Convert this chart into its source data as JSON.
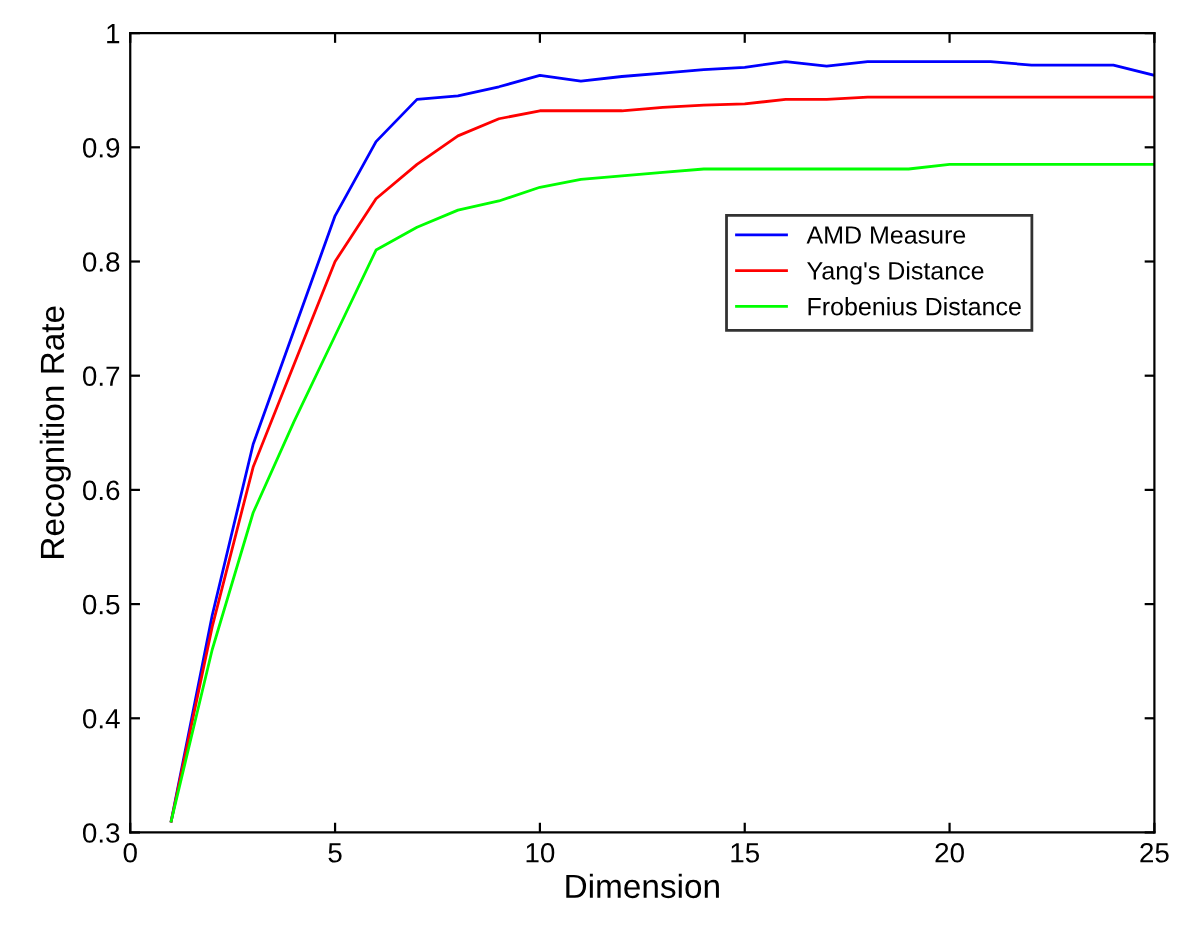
{
  "chart_data": {
    "type": "line",
    "xlabel": "Dimension",
    "ylabel": "Recognition Rate",
    "x": [
      1,
      2,
      3,
      4,
      5,
      6,
      7,
      8,
      9,
      10,
      11,
      12,
      13,
      14,
      15,
      16,
      17,
      18,
      19,
      20,
      21,
      22,
      23,
      24,
      25
    ],
    "series": [
      {
        "name": "AMD Measure",
        "color": "#0000ff",
        "values": [
          0.31,
          0.49,
          0.64,
          0.74,
          0.84,
          0.905,
          0.942,
          0.945,
          0.953,
          0.963,
          0.958,
          0.962,
          0.965,
          0.968,
          0.97,
          0.975,
          0.971,
          0.975,
          0.975,
          0.975,
          0.975,
          0.972,
          0.972,
          0.972,
          0.963
        ]
      },
      {
        "name": "Yang's Distance",
        "color": "#ff0000",
        "values": [
          0.31,
          0.48,
          0.62,
          0.71,
          0.8,
          0.855,
          0.885,
          0.91,
          0.925,
          0.932,
          0.932,
          0.932,
          0.935,
          0.937,
          0.938,
          0.942,
          0.942,
          0.944,
          0.944,
          0.944,
          0.944,
          0.944,
          0.944,
          0.944,
          0.944
        ]
      },
      {
        "name": "Frobenius Distance",
        "color": "#00ff00",
        "values": [
          0.31,
          0.46,
          0.58,
          0.66,
          0.735,
          0.81,
          0.83,
          0.845,
          0.853,
          0.865,
          0.872,
          0.875,
          0.878,
          0.881,
          0.881,
          0.881,
          0.881,
          0.881,
          0.881,
          0.885,
          0.885,
          0.885,
          0.885,
          0.885,
          0.885
        ]
      }
    ],
    "xlim": [
      0,
      25
    ],
    "xticks": [
      0,
      5,
      10,
      15,
      20,
      25
    ],
    "ylim": [
      0.3,
      1
    ],
    "yticks": [
      0.3,
      0.4,
      0.5,
      0.6,
      0.7,
      0.8,
      0.9,
      1
    ],
    "grid": false,
    "legend": "right",
    "marker": "none",
    "line_style": "solid"
  }
}
